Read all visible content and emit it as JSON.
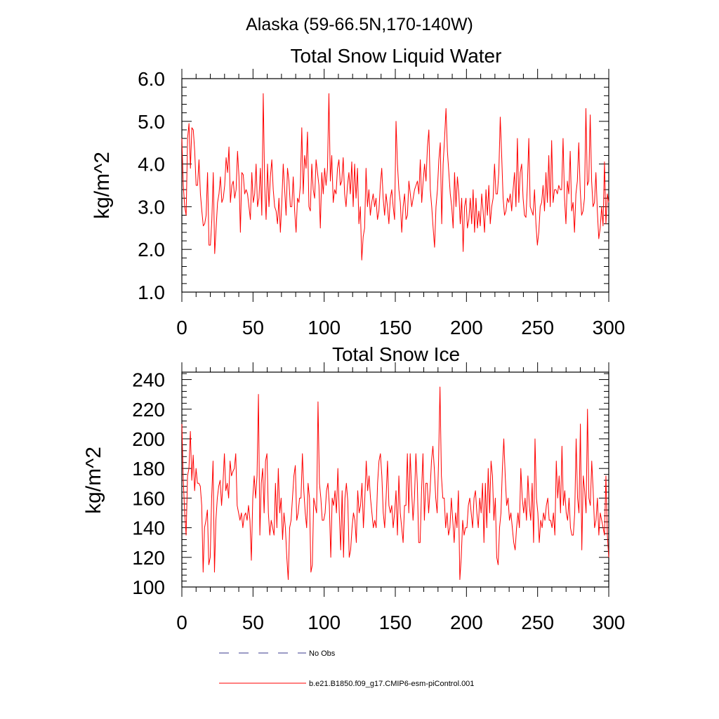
{
  "page": {
    "suptitle": "Alaska (59-66.5N,170-140W)"
  },
  "legend": {
    "obs_label": "No Obs",
    "obs_color": "#3a3a8c",
    "model_label": "b.e21.B1850.f09_g17.CMIP6-esm-piControl.001",
    "model_color": "#ff0000",
    "placement": "bottom-left"
  },
  "chart_data": [
    {
      "type": "line",
      "title": "Total Snow Liquid Water",
      "xlabel": "",
      "ylabel": "kg/m^2",
      "xlim": [
        0,
        300
      ],
      "ylim": [
        1.0,
        6.0
      ],
      "xticks": [
        0,
        50,
        100,
        150,
        200,
        250,
        300
      ],
      "xtick_labels": [
        "0",
        "50",
        "100",
        "150",
        "200",
        "250",
        "300"
      ],
      "yticks": [
        1.0,
        2.0,
        3.0,
        4.0,
        5.0,
        6.0
      ],
      "ytick_labels": [
        "1.0",
        "2.0",
        "3.0",
        "4.0",
        "5.0",
        "6.0"
      ],
      "grid": false,
      "series": [
        {
          "name": "b.e21.B1850.f09_g17.CMIP6-esm-piControl.001",
          "color": "#ff0000",
          "values": [
            4.6,
            3.5,
            3.0,
            2.8,
            4.6,
            4.95,
            3.9,
            4.85,
            4.8,
            4.3,
            3.5,
            3.5,
            4.1,
            3.3,
            2.9,
            2.55,
            2.6,
            2.8,
            3.8,
            2.1,
            2.1,
            2.7,
            3.8,
            1.9,
            2.5,
            3.1,
            3.3,
            3.7,
            3.1,
            3.2,
            3.5,
            4.15,
            3.8,
            4.4,
            3.1,
            3.5,
            3.6,
            3.2,
            3.4,
            4.3,
            3.7,
            2.4,
            3.8,
            3.75,
            3.3,
            3.4,
            3.3,
            3.0,
            2.7,
            3.8,
            3.1,
            3.3,
            4.0,
            3.0,
            3.2,
            3.9,
            2.8,
            5.65,
            3.5,
            2.7,
            4.0,
            3.0,
            3.7,
            4.1,
            3.4,
            3.0,
            2.9,
            2.6,
            3.2,
            2.4,
            3.1,
            4.0,
            3.4,
            2.8,
            3.9,
            3.6,
            3.0,
            3.0,
            3.7,
            2.9,
            2.4,
            3.2,
            3.1,
            3.5,
            4.85,
            3.3,
            4.2,
            3.9,
            4.75,
            3.0,
            2.9,
            4.0,
            3.4,
            3.2,
            4.1,
            3.8,
            3.5,
            2.5,
            3.8,
            3.3,
            3.9,
            3.5,
            3.9,
            5.65,
            3.6,
            4.2,
            3.1,
            3.4,
            3.3,
            3.9,
            4.1,
            3.5,
            3.6,
            4.15,
            3.3,
            3.0,
            3.5,
            3.8,
            3.3,
            4.05,
            3.0,
            4.0,
            3.2,
            3.9,
            2.6,
            3.0,
            1.75,
            2.3,
            2.5,
            3.9,
            3.0,
            3.4,
            2.8,
            3.1,
            3.3,
            3.0,
            3.2,
            2.7,
            2.9,
            3.5,
            3.9,
            3.2,
            2.8,
            3.3,
            3.0,
            2.6,
            3.2,
            3.4,
            3.0,
            2.7,
            5.0,
            4.0,
            3.4,
            3.1,
            2.4,
            3.0,
            3.3,
            2.7,
            2.8,
            3.6,
            3.3,
            3.0,
            3.2,
            3.4,
            3.5,
            3.6,
            3.3,
            4.1,
            3.1,
            3.6,
            4.0,
            3.6,
            4.4,
            4.8,
            3.4,
            3.0,
            2.5,
            2.05,
            3.0,
            3.4,
            4.1,
            4.5,
            2.6,
            4.0,
            4.6,
            5.3,
            4.3,
            3.8,
            3.3,
            3.0,
            2.5,
            3.8,
            3.0,
            3.7,
            3.3,
            2.6,
            3.2,
            1.95,
            3.0,
            3.2,
            2.5,
            2.7,
            3.2,
            2.6,
            3.4,
            2.4,
            3.2,
            2.5,
            2.9,
            2.55,
            3.3,
            2.9,
            2.4,
            3.4,
            2.8,
            3.5,
            2.6,
            3.0,
            3.2,
            4.0,
            3.3,
            3.3,
            3.8,
            5.1,
            4.2,
            3.2,
            2.8,
            2.9,
            3.2,
            3.1,
            3.3,
            2.9,
            3.4,
            3.8,
            3.0,
            4.6,
            3.1,
            3.8,
            4.0,
            3.2,
            2.8,
            2.75,
            3.5,
            4.6,
            3.0,
            2.9,
            2.8,
            3.4,
            2.6,
            2.1,
            2.4,
            3.0,
            3.1,
            3.5,
            2.9,
            3.8,
            3.1,
            4.2,
            3.0,
            4.55,
            3.1,
            3.4,
            3.4,
            3.3,
            3.5,
            3.4,
            3.4,
            4.6,
            3.2,
            2.6,
            3.6,
            3.3,
            4.3,
            2.9,
            3.1,
            2.4,
            3.3,
            3.6,
            4.5,
            3.4,
            2.8,
            2.9,
            3.2,
            5.3,
            3.5,
            3.6,
            5.15,
            3.6,
            3.0,
            3.1,
            3.8,
            2.9,
            2.25,
            2.5,
            3.0,
            2.55,
            4.05,
            2.6,
            3.3,
            3.1
          ]
        }
      ]
    },
    {
      "type": "line",
      "title": "Total Snow Ice",
      "xlabel": "",
      "ylabel": "kg/m^2",
      "xlim": [
        0,
        300
      ],
      "ylim": [
        100,
        245
      ],
      "xticks": [
        0,
        50,
        100,
        150,
        200,
        250,
        300
      ],
      "xtick_labels": [
        "0",
        "50",
        "100",
        "150",
        "200",
        "250",
        "300"
      ],
      "yticks": [
        100,
        120,
        140,
        160,
        180,
        200,
        220,
        240
      ],
      "ytick_labels": [
        "100",
        "120",
        "140",
        "160",
        "180",
        "200",
        "220",
        "240"
      ],
      "grid": false,
      "series": [
        {
          "name": "b.e21.B1850.f09_g17.CMIP6-esm-piControl.001",
          "color": "#ff0000",
          "values": [
            210,
            172,
            150,
            135,
            175,
            180,
            205,
            172,
            189,
            165,
            180,
            170,
            170,
            168,
            155,
            110,
            140,
            145,
            152,
            115,
            120,
            160,
            185,
            110,
            145,
            160,
            168,
            172,
            155,
            170,
            190,
            165,
            170,
            160,
            185,
            175,
            178,
            180,
            190,
            155,
            150,
            145,
            150,
            140,
            148,
            150,
            145,
            155,
            145,
            118,
            160,
            175,
            160,
            175,
            230,
            135,
            170,
            180,
            150,
            185,
            190,
            150,
            135,
            145,
            140,
            135,
            170,
            140,
            180,
            150,
            160,
            132,
            150,
            140,
            120,
            105,
            140,
            145,
            160,
            175,
            182,
            145,
            150,
            160,
            160,
            190,
            165,
            150,
            140,
            170,
            160,
            110,
            115,
            160,
            155,
            150,
            225,
            170,
            160,
            145,
            145,
            150,
            165,
            170,
            155,
            120,
            160,
            155,
            165,
            150,
            180,
            150,
            125,
            165,
            120,
            160,
            170,
            158,
            120,
            125,
            140,
            150,
            145,
            130,
            165,
            150,
            155,
            170,
            140,
            160,
            185,
            165,
            175,
            160,
            150,
            140,
            145,
            140,
            170,
            185,
            190,
            175,
            150,
            140,
            160,
            185,
            155,
            150,
            155,
            140,
            150,
            165,
            135,
            175,
            150,
            140,
            130,
            155,
            155,
            190,
            150,
            190,
            165,
            145,
            160,
            190,
            170,
            130,
            130,
            165,
            190,
            145,
            170,
            170,
            150,
            165,
            185,
            195,
            180,
            160,
            150,
            185,
            235,
            175,
            160,
            160,
            140,
            150,
            135,
            140,
            160,
            145,
            130,
            150,
            140,
            165,
            105,
            120,
            145,
            135,
            140,
            140,
            155,
            160,
            150,
            140,
            160,
            165,
            150,
            140,
            160,
            150,
            170,
            130,
            170,
            140,
            180,
            150,
            185,
            175,
            145,
            160,
            120,
            115,
            140,
            150,
            180,
            200,
            175,
            155,
            160,
            145,
            150,
            140,
            130,
            125,
            140,
            150,
            140,
            180,
            160,
            150,
            160,
            145,
            175,
            155,
            145,
            170,
            130,
            200,
            160,
            150,
            130,
            145,
            140,
            150,
            145,
            155,
            160,
            145,
            145,
            140,
            150,
            135,
            185,
            160,
            175,
            150,
            195,
            155,
            165,
            150,
            145,
            160,
            140,
            135,
            135,
            150,
            200,
            160,
            150,
            210,
            125,
            175,
            165,
            150,
            220,
            160,
            155,
            185,
            165,
            140,
            145,
            160,
            135,
            150,
            145,
            140,
            135,
            175,
            135,
            120
          ]
        }
      ]
    }
  ]
}
